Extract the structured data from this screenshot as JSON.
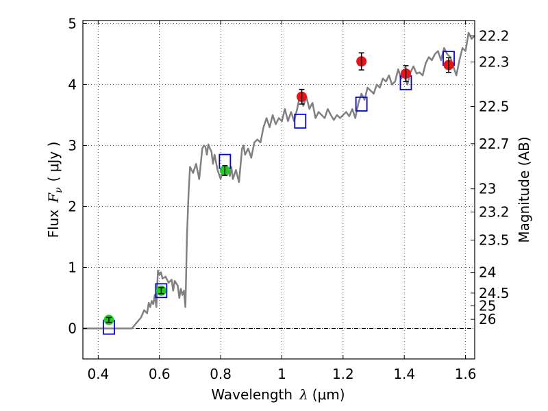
{
  "chart_data": {
    "type": "scatter",
    "xlabel": "Wavelength",
    "xlabel_symbol": "λ",
    "xlabel_unit": "(μm)",
    "ylabel": "Flux",
    "ylabel_symbol": "F",
    "ylabel_subscript": "ν",
    "ylabel_unit": "( μJy )",
    "y2label": "Magnitude (AB)",
    "xlim": [
      0.35,
      1.63
    ],
    "ylim": [
      -0.5,
      5.05
    ],
    "grid": true,
    "x_ticks": [
      0.4,
      0.6,
      0.8,
      1.0,
      1.2,
      1.4,
      1.6
    ],
    "x_tick_labels": [
      "0.4",
      "0.6",
      "0.8",
      "1",
      "1.2",
      "1.4",
      "1.6"
    ],
    "y_ticks": [
      0,
      1,
      2,
      3,
      4,
      5
    ],
    "y_tick_labels": [
      "0",
      "1",
      "2",
      "3",
      "4",
      "5"
    ],
    "mag_ticks": [
      {
        "label": "22.2",
        "flux": 4.8
      },
      {
        "label": "22.3",
        "flux": 4.37
      },
      {
        "label": "22.5",
        "flux": 3.64
      },
      {
        "label": "22.7",
        "flux": 3.03
      },
      {
        "label": "23",
        "flux": 2.29
      },
      {
        "label": "23.2",
        "flux": 1.91
      },
      {
        "label": "23.5",
        "flux": 1.45
      },
      {
        "label": "24",
        "flux": 0.92
      },
      {
        "label": "24.5",
        "flux": 0.58
      },
      {
        "label": "25",
        "flux": 0.37
      },
      {
        "label": "26",
        "flux": 0.15
      }
    ],
    "model_spectrum": {
      "color": "#808080",
      "x": [
        0.35,
        0.51,
        0.54,
        0.55,
        0.56,
        0.565,
        0.57,
        0.575,
        0.58,
        0.585,
        0.59,
        0.595,
        0.6,
        0.605,
        0.61,
        0.62,
        0.63,
        0.64,
        0.645,
        0.65,
        0.66,
        0.665,
        0.67,
        0.675,
        0.68,
        0.685,
        0.69,
        0.695,
        0.7,
        0.705,
        0.71,
        0.72,
        0.73,
        0.74,
        0.745,
        0.75,
        0.755,
        0.76,
        0.765,
        0.77,
        0.775,
        0.78,
        0.79,
        0.8,
        0.81,
        0.82,
        0.825,
        0.83,
        0.835,
        0.84,
        0.85,
        0.86,
        0.87,
        0.875,
        0.88,
        0.89,
        0.9,
        0.91,
        0.92,
        0.93,
        0.94,
        0.95,
        0.96,
        0.97,
        0.98,
        0.99,
        1.0,
        1.01,
        1.02,
        1.03,
        1.04,
        1.05,
        1.06,
        1.07,
        1.08,
        1.09,
        1.1,
        1.11,
        1.12,
        1.13,
        1.14,
        1.15,
        1.16,
        1.17,
        1.18,
        1.19,
        1.2,
        1.21,
        1.22,
        1.23,
        1.24,
        1.25,
        1.26,
        1.27,
        1.28,
        1.29,
        1.3,
        1.31,
        1.32,
        1.33,
        1.34,
        1.35,
        1.36,
        1.37,
        1.38,
        1.39,
        1.4,
        1.41,
        1.42,
        1.43,
        1.44,
        1.45,
        1.46,
        1.47,
        1.48,
        1.49,
        1.5,
        1.51,
        1.52,
        1.53,
        1.54,
        1.55,
        1.56,
        1.57,
        1.58,
        1.59,
        1.6,
        1.61,
        1.62,
        1.63
      ],
      "y": [
        0.0,
        0.0,
        0.18,
        0.3,
        0.25,
        0.42,
        0.35,
        0.45,
        0.4,
        0.55,
        0.35,
        0.95,
        0.88,
        0.92,
        0.82,
        0.85,
        0.75,
        0.8,
        0.62,
        0.78,
        0.7,
        0.5,
        0.65,
        0.55,
        0.62,
        0.35,
        1.5,
        2.2,
        2.65,
        2.6,
        2.55,
        2.7,
        2.45,
        2.95,
        3.0,
        2.98,
        2.85,
        3.02,
        2.95,
        2.9,
        2.7,
        2.85,
        2.6,
        2.45,
        2.65,
        2.55,
        2.62,
        2.5,
        2.65,
        2.45,
        2.6,
        2.4,
        2.95,
        3.0,
        2.85,
        2.95,
        2.8,
        3.05,
        3.1,
        3.05,
        3.3,
        3.45,
        3.3,
        3.5,
        3.35,
        3.45,
        3.4,
        3.6,
        3.4,
        3.55,
        3.4,
        3.6,
        3.85,
        3.65,
        3.8,
        3.6,
        3.7,
        3.45,
        3.55,
        3.5,
        3.45,
        3.6,
        3.5,
        3.42,
        3.5,
        3.45,
        3.5,
        3.55,
        3.48,
        3.6,
        3.45,
        3.7,
        3.85,
        3.75,
        3.95,
        3.9,
        3.85,
        4.0,
        3.95,
        4.1,
        4.05,
        4.15,
        4.0,
        4.05,
        4.25,
        4.1,
        4.15,
        4.0,
        4.2,
        4.3,
        4.18,
        4.2,
        4.15,
        4.35,
        4.45,
        4.4,
        4.5,
        4.55,
        4.4,
        4.6,
        4.5,
        4.45,
        4.3,
        4.15,
        4.4,
        4.6,
        4.55,
        4.85,
        4.75,
        4.8
      ]
    },
    "model_photometry": {
      "color": "#0000ee",
      "x": [
        0.435,
        0.606,
        0.814,
        1.06,
        1.26,
        1.405,
        1.545
      ],
      "y": [
        0.02,
        0.62,
        2.74,
        3.4,
        3.68,
        4.03,
        4.43
      ]
    },
    "observed_optical": {
      "color": "#22cc22",
      "x": [
        0.435,
        0.606,
        0.814
      ],
      "y": [
        0.14,
        0.62,
        2.59
      ],
      "err": [
        0.04,
        0.05,
        0.08
      ]
    },
    "observed_nir": {
      "color": "#ee1111",
      "x": [
        1.065,
        1.26,
        1.405,
        1.545
      ],
      "y": [
        3.8,
        4.38,
        4.18,
        4.32
      ],
      "err": [
        0.12,
        0.14,
        0.13,
        0.12
      ]
    }
  }
}
